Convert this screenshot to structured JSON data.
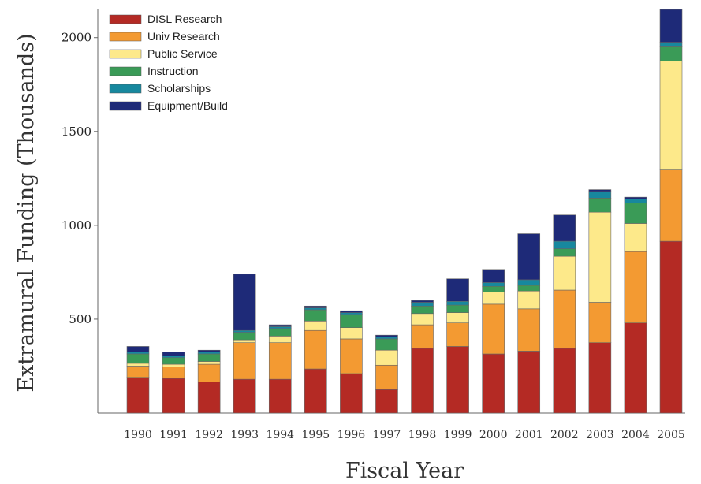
{
  "chart_data": {
    "type": "bar",
    "stacked": true,
    "title": "",
    "xlabel": "Fiscal Year",
    "ylabel": "Extramural Funding (Thousands)",
    "ylim": [
      0,
      2150
    ],
    "yticks": [
      500,
      1000,
      1500,
      2000
    ],
    "grid": false,
    "legend_position": "top-left",
    "categories": [
      "1990",
      "1991",
      "1992",
      "1993",
      "1994",
      "1995",
      "1996",
      "1997",
      "1998",
      "1999",
      "2000",
      "2001",
      "2002",
      "2003",
      "2004",
      "2005"
    ],
    "series": [
      {
        "name": "DISL Research",
        "color": "#b42a24",
        "values": [
          190,
          185,
          165,
          180,
          180,
          235,
          210,
          125,
          345,
          355,
          315,
          330,
          345,
          375,
          480,
          915
        ]
      },
      {
        "name": "Univ Research",
        "color": "#f39a32",
        "values": [
          60,
          60,
          95,
          195,
          195,
          205,
          185,
          130,
          125,
          125,
          265,
          225,
          310,
          215,
          380,
          380
        ]
      },
      {
        "name": "Public Service",
        "color": "#fde98a",
        "values": [
          15,
          15,
          15,
          15,
          35,
          50,
          60,
          80,
          60,
          55,
          65,
          95,
          180,
          480,
          150,
          580
        ]
      },
      {
        "name": "Instruction",
        "color": "#3a9b57",
        "values": [
          50,
          35,
          40,
          40,
          40,
          60,
          70,
          60,
          40,
          40,
          30,
          30,
          40,
          75,
          110,
          80
        ]
      },
      {
        "name": "Scholarships",
        "color": "#17889e",
        "values": [
          10,
          10,
          10,
          10,
          10,
          10,
          10,
          10,
          20,
          20,
          20,
          30,
          40,
          35,
          20,
          20
        ]
      },
      {
        "name": "Equipment/Build",
        "color": "#1e2a78",
        "values": [
          30,
          20,
          10,
          300,
          10,
          10,
          10,
          10,
          10,
          120,
          70,
          245,
          140,
          10,
          10,
          175
        ]
      }
    ]
  }
}
